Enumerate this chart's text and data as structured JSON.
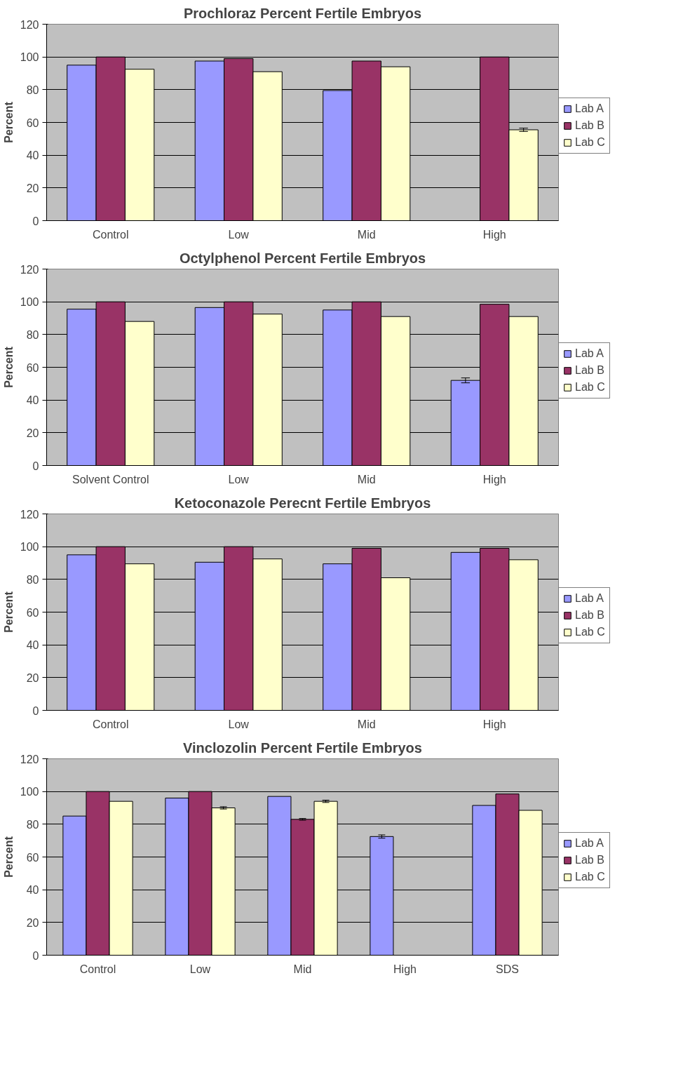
{
  "chart_data": [
    {
      "type": "bar",
      "title": "Prochloraz Percent Fertile Embryos",
      "ylabel": "Percent",
      "categories": [
        "Control",
        "Low",
        "Mid",
        "High"
      ],
      "ylim": [
        0,
        120
      ],
      "yticks": [
        0,
        20,
        40,
        60,
        80,
        100,
        120
      ],
      "grid": "y",
      "legend": "right",
      "series": [
        {
          "name": "Lab A",
          "color": "#9999ff",
          "values": [
            95,
            97.5,
            79.5,
            0
          ]
        },
        {
          "name": "Lab B",
          "color": "#993366",
          "values": [
            100,
            99,
            97.5,
            100
          ]
        },
        {
          "name": "Lab C",
          "color": "#ffffcc",
          "values": [
            92.5,
            91,
            94,
            55.5
          ],
          "errors": [
            null,
            null,
            null,
            1
          ]
        }
      ]
    },
    {
      "type": "bar",
      "title": "Octylphenol Percent Fertile Embryos",
      "ylabel": "Percent",
      "categories": [
        "Solvent Control",
        "Low",
        "Mid",
        "High"
      ],
      "ylim": [
        0,
        120
      ],
      "yticks": [
        0,
        20,
        40,
        60,
        80,
        100,
        120
      ],
      "grid": "y",
      "legend": "right",
      "series": [
        {
          "name": "Lab A",
          "color": "#9999ff",
          "values": [
            95.5,
            96.5,
            95,
            52
          ],
          "errors": [
            null,
            null,
            null,
            1.5
          ]
        },
        {
          "name": "Lab B",
          "color": "#993366",
          "values": [
            100,
            100,
            100,
            98.5
          ]
        },
        {
          "name": "Lab C",
          "color": "#ffffcc",
          "values": [
            88,
            92.5,
            91,
            91
          ]
        }
      ]
    },
    {
      "type": "bar",
      "title": "Ketoconazole Perecnt Fertile Embryos",
      "ylabel": "Percent",
      "categories": [
        "Control",
        "Low",
        "Mid",
        "High"
      ],
      "ylim": [
        0,
        120
      ],
      "yticks": [
        0,
        20,
        40,
        60,
        80,
        100,
        120
      ],
      "grid": "y",
      "legend": "right",
      "series": [
        {
          "name": "Lab A",
          "color": "#9999ff",
          "values": [
            95,
            90.5,
            89.5,
            96.5
          ]
        },
        {
          "name": "Lab B",
          "color": "#993366",
          "values": [
            100,
            100,
            99,
            99
          ]
        },
        {
          "name": "Lab C",
          "color": "#ffffcc",
          "values": [
            89.5,
            92.5,
            81,
            92
          ]
        }
      ]
    },
    {
      "type": "bar",
      "title": "Vinclozolin Percent Fertile Embryos",
      "ylabel": "Percent",
      "categories": [
        "Control",
        "Low",
        "Mid",
        "High",
        "SDS"
      ],
      "ylim": [
        0,
        120
      ],
      "yticks": [
        0,
        20,
        40,
        60,
        80,
        100,
        120
      ],
      "grid": "y",
      "legend": "right",
      "series": [
        {
          "name": "Lab A",
          "color": "#9999ff",
          "values": [
            85,
            96,
            97,
            72.5,
            91.5
          ],
          "errors": [
            null,
            null,
            null,
            1,
            null
          ]
        },
        {
          "name": "Lab B",
          "color": "#993366",
          "values": [
            100,
            100,
            83,
            0,
            98.5
          ],
          "errors": [
            null,
            null,
            0.5,
            null,
            null
          ]
        },
        {
          "name": "Lab C",
          "color": "#ffffcc",
          "values": [
            94,
            90,
            94,
            0,
            88.5
          ],
          "errors": [
            null,
            0.7,
            0.7,
            null,
            null
          ]
        }
      ]
    }
  ]
}
